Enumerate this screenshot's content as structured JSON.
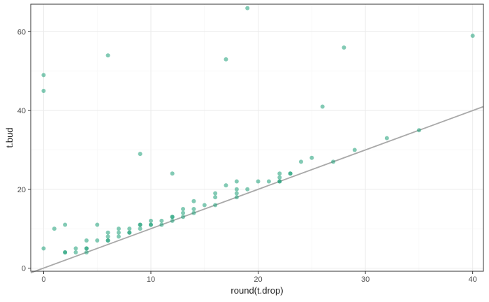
{
  "chart_data": {
    "type": "scatter",
    "xlabel": "round(t.drop)",
    "ylabel": "t.bud",
    "xlim": [
      -1.2,
      41
    ],
    "ylim": [
      -0.8,
      67
    ],
    "x_ticks": [
      0,
      10,
      20,
      30,
      40
    ],
    "y_ticks": [
      0,
      20,
      40,
      60
    ],
    "x_tick_labels": [
      "0",
      "10",
      "20",
      "30",
      "40"
    ],
    "y_tick_labels": [
      "0",
      "20",
      "40",
      "60"
    ],
    "grid": true,
    "point_color": "#1b9e77",
    "point_opacity": 0.55,
    "reference_line": {
      "slope": 1,
      "intercept": 0,
      "color": "#a9a9a9"
    },
    "points": [
      {
        "x": 0,
        "y": 5
      },
      {
        "x": 0,
        "y": 45
      },
      {
        "x": 0,
        "y": 49
      },
      {
        "x": 1,
        "y": 10
      },
      {
        "x": 2,
        "y": 4
      },
      {
        "x": 2,
        "y": 4
      },
      {
        "x": 2,
        "y": 11
      },
      {
        "x": 3,
        "y": 4
      },
      {
        "x": 3,
        "y": 5
      },
      {
        "x": 4,
        "y": 4
      },
      {
        "x": 4,
        "y": 5
      },
      {
        "x": 4,
        "y": 5
      },
      {
        "x": 4,
        "y": 7
      },
      {
        "x": 5,
        "y": 7
      },
      {
        "x": 5,
        "y": 11
      },
      {
        "x": 6,
        "y": 7
      },
      {
        "x": 6,
        "y": 7
      },
      {
        "x": 6,
        "y": 8
      },
      {
        "x": 6,
        "y": 9
      },
      {
        "x": 6,
        "y": 54
      },
      {
        "x": 7,
        "y": 8
      },
      {
        "x": 7,
        "y": 9
      },
      {
        "x": 7,
        "y": 10
      },
      {
        "x": 8,
        "y": 9
      },
      {
        "x": 8,
        "y": 9
      },
      {
        "x": 8,
        "y": 10
      },
      {
        "x": 9,
        "y": 10
      },
      {
        "x": 9,
        "y": 11
      },
      {
        "x": 9,
        "y": 11
      },
      {
        "x": 9,
        "y": 29
      },
      {
        "x": 10,
        "y": 11
      },
      {
        "x": 10,
        "y": 11
      },
      {
        "x": 10,
        "y": 12
      },
      {
        "x": 11,
        "y": 11
      },
      {
        "x": 11,
        "y": 12
      },
      {
        "x": 12,
        "y": 12
      },
      {
        "x": 12,
        "y": 13
      },
      {
        "x": 12,
        "y": 13
      },
      {
        "x": 12,
        "y": 24
      },
      {
        "x": 13,
        "y": 13
      },
      {
        "x": 13,
        "y": 14
      },
      {
        "x": 13,
        "y": 15
      },
      {
        "x": 14,
        "y": 14
      },
      {
        "x": 14,
        "y": 15
      },
      {
        "x": 14,
        "y": 17
      },
      {
        "x": 15,
        "y": 16
      },
      {
        "x": 16,
        "y": 16
      },
      {
        "x": 16,
        "y": 18
      },
      {
        "x": 16,
        "y": 19
      },
      {
        "x": 17,
        "y": 21
      },
      {
        "x": 17,
        "y": 53
      },
      {
        "x": 18,
        "y": 18
      },
      {
        "x": 18,
        "y": 19
      },
      {
        "x": 18,
        "y": 20
      },
      {
        "x": 18,
        "y": 22
      },
      {
        "x": 19,
        "y": 20
      },
      {
        "x": 19,
        "y": 66
      },
      {
        "x": 20,
        "y": 22
      },
      {
        "x": 21,
        "y": 22
      },
      {
        "x": 22,
        "y": 22
      },
      {
        "x": 22,
        "y": 22
      },
      {
        "x": 22,
        "y": 23
      },
      {
        "x": 22,
        "y": 24
      },
      {
        "x": 23,
        "y": 24
      },
      {
        "x": 23,
        "y": 24
      },
      {
        "x": 24,
        "y": 27
      },
      {
        "x": 25,
        "y": 28
      },
      {
        "x": 26,
        "y": 41
      },
      {
        "x": 27,
        "y": 27
      },
      {
        "x": 28,
        "y": 56
      },
      {
        "x": 29,
        "y": 30
      },
      {
        "x": 32,
        "y": 33
      },
      {
        "x": 35,
        "y": 35
      },
      {
        "x": 40,
        "y": 59
      }
    ]
  }
}
